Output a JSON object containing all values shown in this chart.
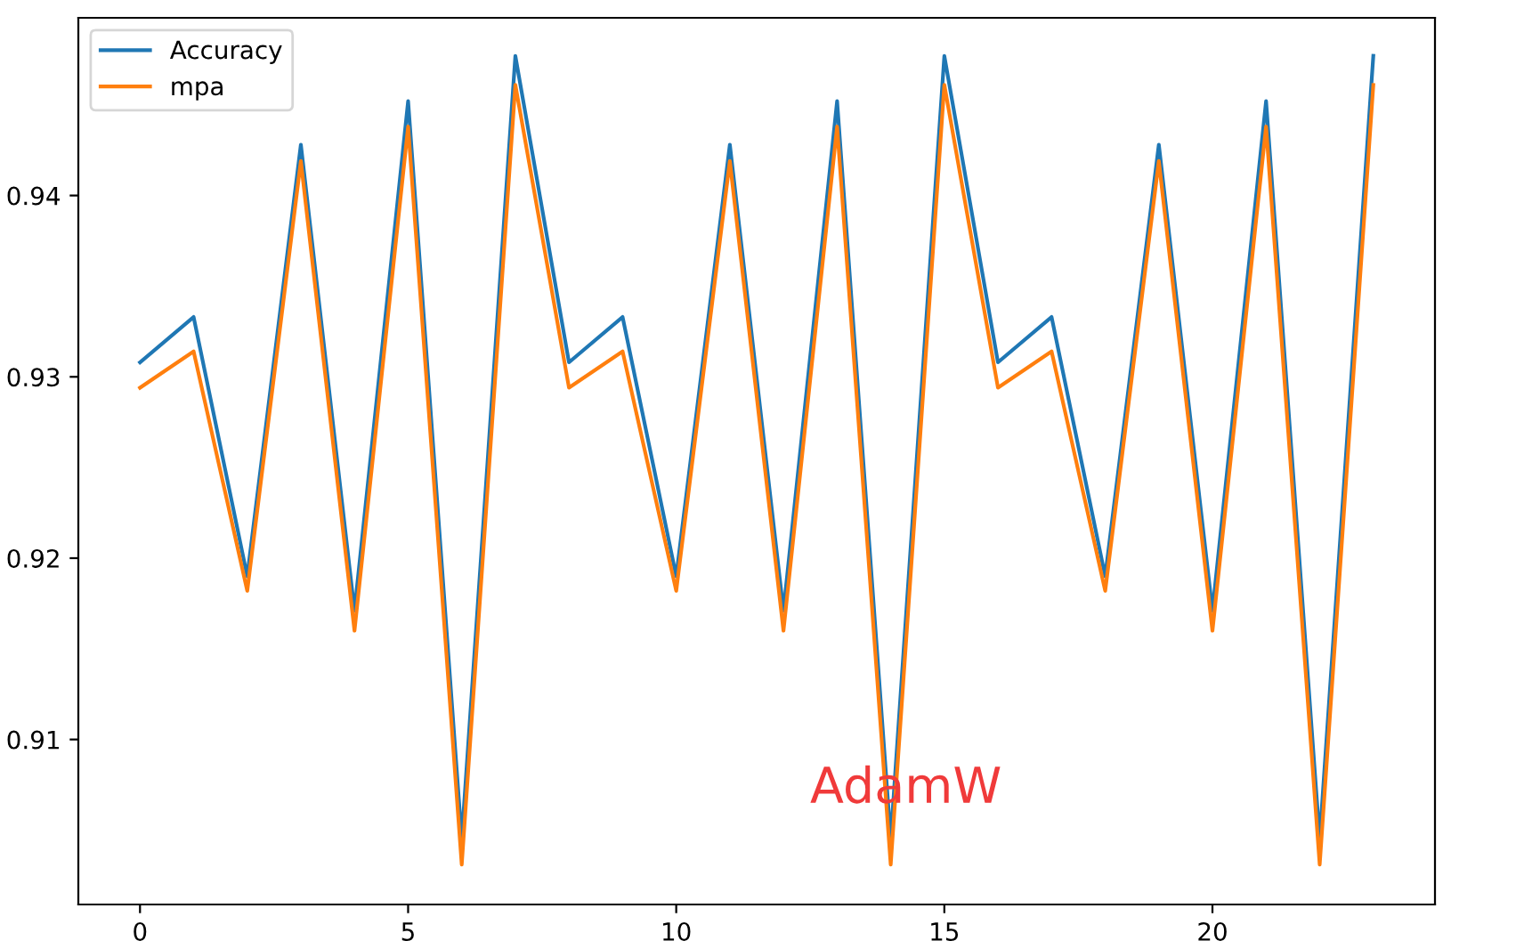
{
  "chart_data": {
    "type": "line",
    "x": [
      0,
      1,
      2,
      3,
      4,
      5,
      6,
      7,
      8,
      9,
      10,
      11,
      12,
      13,
      14,
      15,
      16,
      17,
      18,
      19,
      20,
      21,
      22,
      23
    ],
    "series": [
      {
        "name": "Accuracy",
        "color": "#1f77b4",
        "values": [
          0.9308,
          0.9333,
          0.919,
          0.9428,
          0.9171,
          0.9452,
          0.9045,
          0.9477,
          0.9308,
          0.9333,
          0.919,
          0.9428,
          0.9171,
          0.9452,
          0.9045,
          0.9477,
          0.9308,
          0.9333,
          0.919,
          0.9428,
          0.9171,
          0.9452,
          0.9045,
          0.9477
        ]
      },
      {
        "name": "mpa",
        "color": "#ff7f0e",
        "values": [
          0.9294,
          0.9314,
          0.9182,
          0.9419,
          0.916,
          0.9438,
          0.9031,
          0.9461,
          0.9294,
          0.9314,
          0.9182,
          0.9419,
          0.916,
          0.9438,
          0.9031,
          0.9461,
          0.9294,
          0.9314,
          0.9182,
          0.9419,
          0.916,
          0.9438,
          0.9031,
          0.9461
        ]
      }
    ],
    "annotations": [
      "AdamW"
    ],
    "xlim": [
      -1.15,
      24.15
    ],
    "xticks": [
      0,
      5,
      10,
      15,
      20
    ],
    "ylim": [
      0.9009,
      0.9498
    ],
    "yticks": [
      0.91,
      0.92,
      0.93,
      0.94
    ],
    "legend": "top left",
    "grid": false,
    "marker": "none",
    "line_style": "solid"
  }
}
